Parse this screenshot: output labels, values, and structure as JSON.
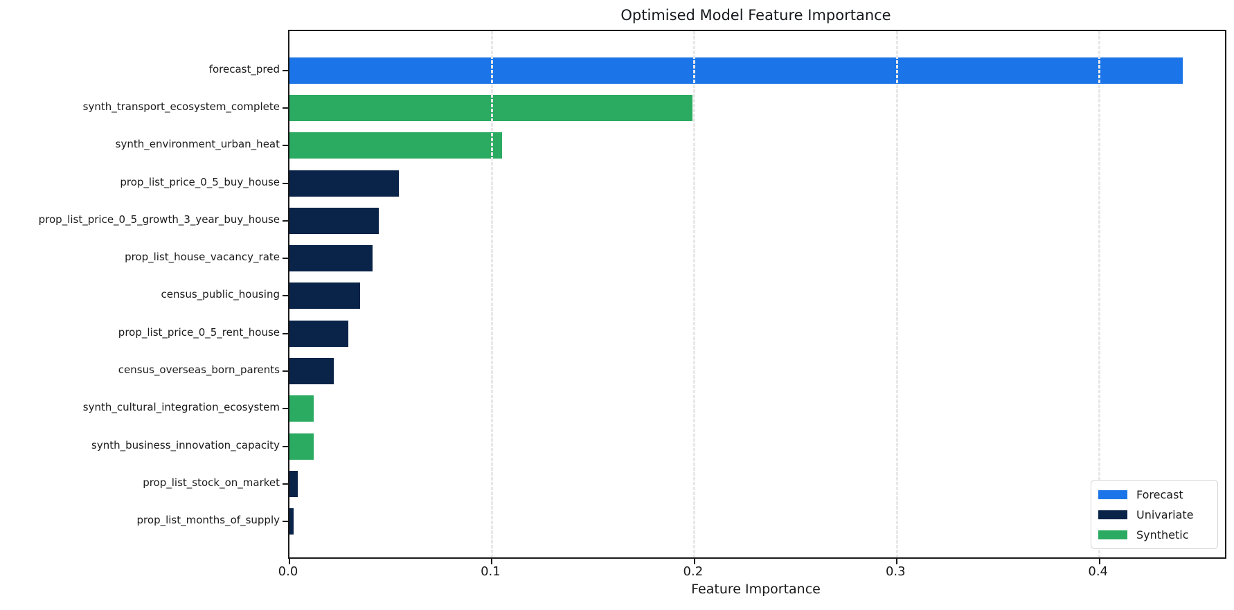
{
  "chart_data": {
    "type": "bar",
    "orientation": "horizontal",
    "title": "Optimised Model Feature Importance",
    "xlabel": "Feature Importance",
    "ylabel": "",
    "xlim": [
      0,
      0.462
    ],
    "xticks": [
      0.0,
      0.1,
      0.2,
      0.3,
      0.4
    ],
    "xtick_labels": [
      "0.0",
      "0.1",
      "0.2",
      "0.3",
      "0.4"
    ],
    "grid": "vertical-light-gray-above-bars",
    "bars": [
      {
        "label": "forecast_pred",
        "value": 0.441,
        "category": "Forecast"
      },
      {
        "label": "synth_transport_ecosystem_complete",
        "value": 0.199,
        "category": "Synthetic"
      },
      {
        "label": "synth_environment_urban_heat",
        "value": 0.105,
        "category": "Synthetic"
      },
      {
        "label": "prop_list_price_0_5_buy_house",
        "value": 0.054,
        "category": "Univariate"
      },
      {
        "label": "prop_list_price_0_5_growth_3_year_buy_house",
        "value": 0.044,
        "category": "Univariate"
      },
      {
        "label": "prop_list_house_vacancy_rate",
        "value": 0.041,
        "category": "Univariate"
      },
      {
        "label": "census_public_housing",
        "value": 0.035,
        "category": "Univariate"
      },
      {
        "label": "prop_list_price_0_5_rent_house",
        "value": 0.029,
        "category": "Univariate"
      },
      {
        "label": "census_overseas_born_parents",
        "value": 0.022,
        "category": "Univariate"
      },
      {
        "label": "synth_cultural_integration_ecosystem",
        "value": 0.012,
        "category": "Synthetic"
      },
      {
        "label": "synth_business_innovation_capacity",
        "value": 0.012,
        "category": "Synthetic"
      },
      {
        "label": "prop_list_stock_on_market",
        "value": 0.004,
        "category": "Univariate"
      },
      {
        "label": "prop_list_months_of_supply",
        "value": 0.002,
        "category": "Univariate"
      }
    ],
    "category_colors": {
      "Forecast": "#1b75e8",
      "Univariate": "#0a2348",
      "Synthetic": "#2bab61"
    },
    "legend": {
      "position": "lower right",
      "entries": [
        {
          "label": "Forecast",
          "color": "#1b75e8"
        },
        {
          "label": "Univariate",
          "color": "#0a2348"
        },
        {
          "label": "Synthetic",
          "color": "#2bab61"
        }
      ]
    },
    "style": {
      "spine_color": "#1a1a1a",
      "grid_color": "#e8e8e8",
      "text_color": "#1a1a1a",
      "background": "#ffffff"
    }
  }
}
